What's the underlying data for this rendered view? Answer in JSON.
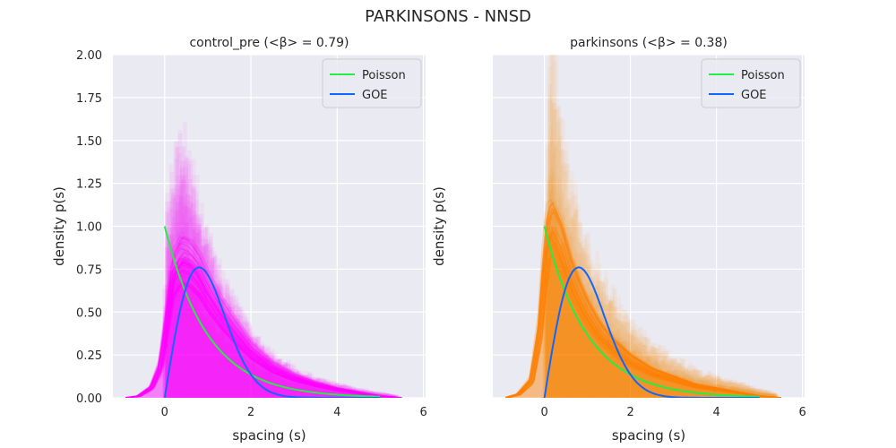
{
  "figure": {
    "suptitle": "PARKINSONS - NNSD"
  },
  "chart_data": [
    {
      "type": "area",
      "title": "control_pre (<β> = 0.79)",
      "xlabel": "spacing (s)",
      "ylabel": "density p(s)",
      "xlim": [
        -1.2,
        6.05
      ],
      "ylim": [
        0,
        2.0
      ],
      "x_ticks": [
        "0",
        "2",
        "4",
        "6"
      ],
      "y_ticks": [
        "0.00",
        "0.25",
        "0.50",
        "0.75",
        "1.00",
        "1.25",
        "1.50",
        "1.75",
        "2.00"
      ],
      "grid": true,
      "legend_position": "upper right",
      "legend": [
        "Poisson",
        "GOE"
      ],
      "colors": {
        "data": "#ff00ff",
        "poisson": "#22ee44",
        "goe": "#1166ff",
        "background": "#eaeaf2"
      },
      "series": [
        {
          "name": "Poisson",
          "formula": "exp(-s)"
        },
        {
          "name": "GOE",
          "formula": "(pi/2) s exp(-pi s^2 / 4)"
        }
      ],
      "histogram_envelope": {
        "s": [
          -0.9,
          -0.5,
          -0.2,
          0.0,
          0.05,
          0.2,
          0.4,
          0.6,
          0.8,
          1.0,
          1.2,
          1.5,
          2.0,
          2.5,
          3.0,
          3.5,
          4.0,
          4.5,
          5.0,
          5.5,
          5.8
        ],
        "density": [
          0.0,
          0.03,
          0.18,
          0.55,
          1.0,
          1.2,
          1.38,
          1.22,
          1.05,
          0.85,
          0.72,
          0.58,
          0.36,
          0.24,
          0.16,
          0.11,
          0.08,
          0.05,
          0.03,
          0.01,
          0.0
        ]
      },
      "kde_mean": {
        "s": [
          -0.9,
          -0.6,
          -0.3,
          -0.1,
          0.0,
          0.2,
          0.4,
          0.6,
          0.8,
          1.0,
          1.3,
          1.6,
          2.0,
          2.5,
          3.0,
          3.5,
          4.0,
          4.5,
          5.0,
          5.5
        ],
        "density": [
          0.0,
          0.01,
          0.06,
          0.18,
          0.35,
          0.72,
          0.8,
          0.78,
          0.72,
          0.62,
          0.5,
          0.4,
          0.28,
          0.18,
          0.12,
          0.08,
          0.05,
          0.03,
          0.01,
          0.0
        ]
      }
    },
    {
      "type": "area",
      "title": "parkinsons (<β> = 0.38)",
      "xlabel": "spacing (s)",
      "ylabel": "density p(s)",
      "xlim": [
        -1.2,
        6.05
      ],
      "ylim": [
        0,
        2.0
      ],
      "x_ticks": [
        "0",
        "2",
        "4",
        "6"
      ],
      "y_ticks": [],
      "grid": true,
      "legend_position": "upper right",
      "legend": [
        "Poisson",
        "GOE"
      ],
      "colors": {
        "data": "#ff8000",
        "poisson": "#22ee44",
        "goe": "#1166ff",
        "background": "#eaeaf2"
      },
      "series": [
        {
          "name": "Poisson",
          "formula": "exp(-s)"
        },
        {
          "name": "GOE",
          "formula": "(pi/2) s exp(-pi s^2 / 4)"
        }
      ],
      "histogram_envelope": {
        "s": [
          -0.9,
          -0.5,
          -0.2,
          0.0,
          0.05,
          0.15,
          0.25,
          0.35,
          0.5,
          0.7,
          1.0,
          1.3,
          1.6,
          2.0,
          2.5,
          3.0,
          3.5,
          4.0,
          4.5,
          5.0,
          5.5,
          5.8
        ],
        "density": [
          0.0,
          0.04,
          0.25,
          0.7,
          1.3,
          2.0,
          1.85,
          1.55,
          1.3,
          1.1,
          0.85,
          0.7,
          0.55,
          0.42,
          0.3,
          0.22,
          0.16,
          0.12,
          0.09,
          0.05,
          0.02,
          0.0
        ]
      },
      "kde_mean": {
        "s": [
          -0.9,
          -0.6,
          -0.3,
          -0.1,
          0.0,
          0.1,
          0.2,
          0.4,
          0.6,
          0.8,
          1.0,
          1.3,
          1.6,
          2.0,
          2.5,
          3.0,
          3.5,
          4.0,
          4.5,
          5.0,
          5.5
        ],
        "density": [
          0.0,
          0.02,
          0.1,
          0.4,
          0.75,
          0.95,
          0.98,
          0.88,
          0.72,
          0.6,
          0.5,
          0.38,
          0.3,
          0.22,
          0.15,
          0.11,
          0.07,
          0.05,
          0.03,
          0.01,
          0.0
        ]
      }
    }
  ]
}
